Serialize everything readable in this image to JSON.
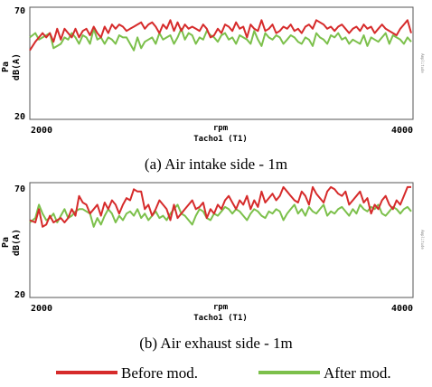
{
  "chart_data": [
    {
      "type": "line",
      "caption": "(a) Air intake side - 1m",
      "ylabel_top": "Pa",
      "ylabel_bottom": "dB(A)",
      "xlabel_top": "rpm",
      "xlabel_bottom": "Tacho1 (T1)",
      "right_axis_label": "Amplitude",
      "xlim": [
        1950,
        4050
      ],
      "ylim": [
        20,
        72
      ],
      "yticks": [
        70,
        20
      ],
      "xticks": [
        2000,
        4000
      ],
      "series": [
        {
          "name": "Before mod.",
          "color": "#d62b2b",
          "x": [
            1950,
            1980,
            2000,
            2020,
            2040,
            2060,
            2080,
            2100,
            2120,
            2140,
            2160,
            2180,
            2200,
            2220,
            2240,
            2260,
            2280,
            2300,
            2320,
            2340,
            2360,
            2380,
            2400,
            2420,
            2440,
            2460,
            2480,
            2500,
            2520,
            2540,
            2560,
            2580,
            2600,
            2620,
            2640,
            2660,
            2680,
            2700,
            2720,
            2740,
            2760,
            2780,
            2800,
            2820,
            2840,
            2860,
            2880,
            2900,
            2920,
            2940,
            2960,
            2980,
            3000,
            3020,
            3040,
            3060,
            3080,
            3100,
            3120,
            3140,
            3160,
            3180,
            3200,
            3220,
            3240,
            3260,
            3280,
            3300,
            3320,
            3340,
            3360,
            3380,
            3400,
            3420,
            3440,
            3460,
            3480,
            3500,
            3520,
            3540,
            3560,
            3580,
            3600,
            3620,
            3640,
            3660,
            3680,
            3700,
            3720,
            3740,
            3760,
            3780,
            3800,
            3820,
            3840,
            3860,
            3880,
            3900,
            3920,
            3940,
            3960,
            3980,
            4000,
            4020,
            4040
          ],
          "values": [
            52,
            56,
            58,
            60,
            58,
            60,
            56,
            62,
            57,
            62,
            60,
            58,
            62,
            58,
            61,
            62,
            59,
            63,
            60,
            58,
            63,
            60,
            64,
            62,
            64,
            63,
            61,
            62,
            63,
            64,
            65,
            62,
            64,
            65,
            63,
            60,
            64,
            62,
            66,
            61,
            65,
            61,
            64,
            62,
            63,
            62,
            61,
            64,
            62,
            58,
            59,
            62,
            60,
            64,
            63,
            61,
            65,
            62,
            63,
            58,
            64,
            62,
            61,
            66,
            61,
            62,
            64,
            60,
            61,
            63,
            62,
            64,
            61,
            62,
            60,
            63,
            64,
            62,
            66,
            65,
            64,
            62,
            63,
            61,
            63,
            64,
            62,
            60,
            62,
            63,
            61,
            64,
            62,
            63,
            60,
            62,
            64,
            62,
            61,
            60,
            59,
            62,
            64,
            66,
            60
          ]
        },
        {
          "name": "After mod.",
          "color": "#7cc04b",
          "x": [
            1950,
            1980,
            2000,
            2020,
            2040,
            2060,
            2080,
            2100,
            2120,
            2140,
            2160,
            2180,
            2200,
            2220,
            2240,
            2260,
            2280,
            2300,
            2320,
            2340,
            2360,
            2380,
            2400,
            2420,
            2440,
            2460,
            2480,
            2500,
            2520,
            2540,
            2560,
            2580,
            2600,
            2620,
            2640,
            2660,
            2680,
            2700,
            2720,
            2740,
            2760,
            2780,
            2800,
            2820,
            2840,
            2860,
            2880,
            2900,
            2920,
            2940,
            2960,
            2980,
            3000,
            3020,
            3040,
            3060,
            3080,
            3100,
            3120,
            3140,
            3160,
            3180,
            3200,
            3220,
            3240,
            3260,
            3280,
            3300,
            3320,
            3340,
            3360,
            3380,
            3400,
            3420,
            3440,
            3460,
            3480,
            3500,
            3520,
            3540,
            3560,
            3580,
            3600,
            3620,
            3640,
            3660,
            3680,
            3700,
            3720,
            3740,
            3760,
            3780,
            3800,
            3820,
            3840,
            3860,
            3880,
            3900,
            3920,
            3940,
            3960,
            3980,
            4000,
            4020,
            4040
          ],
          "values": [
            58,
            60,
            57,
            58,
            59,
            60,
            53,
            54,
            55,
            58,
            57,
            60,
            58,
            55,
            59,
            58,
            55,
            62,
            57,
            58,
            55,
            58,
            57,
            55,
            59,
            58,
            58,
            55,
            52,
            58,
            53,
            56,
            57,
            58,
            55,
            60,
            57,
            58,
            59,
            55,
            58,
            62,
            57,
            60,
            59,
            55,
            58,
            57,
            61,
            59,
            58,
            56,
            59,
            60,
            57,
            58,
            55,
            59,
            58,
            57,
            55,
            61,
            57,
            54,
            60,
            58,
            57,
            59,
            58,
            55,
            57,
            59,
            58,
            56,
            55,
            58,
            57,
            54,
            60,
            58,
            57,
            55,
            59,
            58,
            60,
            57,
            58,
            55,
            57,
            56,
            55,
            59,
            54,
            58,
            57,
            56,
            58,
            60,
            55,
            59,
            58,
            57,
            55,
            58,
            56
          ]
        }
      ]
    },
    {
      "type": "line",
      "caption": "(b) Air exhaust side - 1m",
      "ylabel_top": "Pa",
      "ylabel_bottom": "dB(A)",
      "xlabel_top": "rpm",
      "xlabel_bottom": "Tacho1 (T1)",
      "right_axis_label": "Amplitude",
      "xlim": [
        1950,
        4050
      ],
      "ylim": [
        20,
        72
      ],
      "yticks": [
        70,
        20
      ],
      "xticks": [
        2000,
        4000
      ],
      "series": [
        {
          "name": "Before mod.",
          "color": "#d62b2b",
          "x": [
            1950,
            1980,
            2000,
            2020,
            2040,
            2060,
            2080,
            2100,
            2120,
            2140,
            2160,
            2180,
            2200,
            2220,
            2240,
            2260,
            2280,
            2300,
            2320,
            2340,
            2360,
            2380,
            2400,
            2420,
            2440,
            2460,
            2480,
            2500,
            2520,
            2540,
            2560,
            2580,
            2600,
            2620,
            2640,
            2660,
            2680,
            2700,
            2720,
            2740,
            2760,
            2780,
            2800,
            2820,
            2840,
            2860,
            2880,
            2900,
            2920,
            2940,
            2960,
            2980,
            3000,
            3020,
            3040,
            3060,
            3080,
            3100,
            3120,
            3140,
            3160,
            3180,
            3200,
            3220,
            3240,
            3260,
            3280,
            3300,
            3320,
            3340,
            3360,
            3380,
            3400,
            3420,
            3440,
            3460,
            3480,
            3500,
            3520,
            3540,
            3560,
            3580,
            3600,
            3620,
            3640,
            3660,
            3680,
            3700,
            3720,
            3740,
            3760,
            3780,
            3800,
            3820,
            3840,
            3860,
            3880,
            3900,
            3920,
            3940,
            3960,
            3980,
            4000,
            4020,
            4040
          ],
          "values": [
            55,
            54,
            60,
            52,
            53,
            57,
            54,
            55,
            56,
            54,
            56,
            60,
            57,
            66,
            63,
            62,
            58,
            60,
            62,
            57,
            63,
            60,
            64,
            62,
            58,
            62,
            65,
            64,
            69,
            68,
            68,
            60,
            62,
            57,
            60,
            64,
            62,
            60,
            55,
            62,
            56,
            58,
            60,
            62,
            64,
            60,
            61,
            63,
            56,
            60,
            58,
            62,
            60,
            64,
            66,
            63,
            60,
            64,
            62,
            66,
            60,
            64,
            61,
            68,
            63,
            65,
            67,
            64,
            66,
            70,
            68,
            66,
            64,
            63,
            68,
            66,
            62,
            70,
            67,
            65,
            63,
            68,
            70,
            69,
            67,
            66,
            68,
            62,
            64,
            66,
            68,
            63,
            65,
            58,
            62,
            60,
            64,
            66,
            62,
            60,
            64,
            62,
            66,
            70,
            70
          ]
        },
        {
          "name": "After mod.",
          "color": "#7cc04b",
          "x": [
            1950,
            1980,
            2000,
            2020,
            2040,
            2060,
            2080,
            2100,
            2120,
            2140,
            2160,
            2180,
            2200,
            2220,
            2240,
            2260,
            2280,
            2300,
            2320,
            2340,
            2360,
            2380,
            2400,
            2420,
            2440,
            2460,
            2480,
            2500,
            2520,
            2540,
            2560,
            2580,
            2600,
            2620,
            2640,
            2660,
            2680,
            2700,
            2720,
            2740,
            2760,
            2780,
            2800,
            2820,
            2840,
            2860,
            2880,
            2900,
            2920,
            2940,
            2960,
            2980,
            3000,
            3020,
            3040,
            3060,
            3080,
            3100,
            3120,
            3140,
            3160,
            3180,
            3200,
            3220,
            3240,
            3260,
            3280,
            3300,
            3320,
            3340,
            3360,
            3380,
            3400,
            3420,
            3440,
            3460,
            3480,
            3500,
            3520,
            3540,
            3560,
            3580,
            3600,
            3620,
            3640,
            3660,
            3680,
            3700,
            3720,
            3740,
            3760,
            3780,
            3800,
            3820,
            3840,
            3860,
            3880,
            3900,
            3920,
            3940,
            3960,
            3980,
            4000,
            4020,
            4040
          ],
          "values": [
            54,
            56,
            62,
            58,
            55,
            56,
            58,
            54,
            57,
            60,
            56,
            57,
            59,
            60,
            60,
            59,
            58,
            52,
            56,
            53,
            57,
            60,
            58,
            54,
            57,
            55,
            58,
            59,
            57,
            60,
            56,
            58,
            55,
            57,
            59,
            56,
            57,
            55,
            58,
            60,
            62,
            58,
            57,
            55,
            53,
            57,
            60,
            59,
            56,
            55,
            58,
            57,
            59,
            61,
            60,
            58,
            60,
            59,
            57,
            55,
            58,
            60,
            59,
            57,
            56,
            59,
            58,
            60,
            59,
            55,
            58,
            60,
            62,
            58,
            60,
            57,
            61,
            59,
            58,
            60,
            62,
            57,
            59,
            58,
            60,
            61,
            59,
            57,
            60,
            58,
            62,
            60,
            59,
            61,
            60,
            62,
            58,
            57,
            59,
            61,
            60,
            58,
            60,
            61,
            59
          ]
        }
      ]
    }
  ],
  "legend": {
    "before_label": "Before mod.",
    "before_color": "#d62b2b",
    "after_label": "After mod.",
    "after_color": "#7cc04b"
  }
}
